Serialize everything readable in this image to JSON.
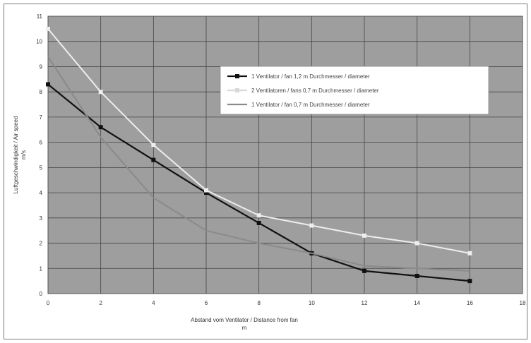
{
  "chart_data": {
    "type": "line",
    "title": "",
    "xlabel": "Abstand vom Ventilator / Distance from fan",
    "xlabel_unit": "m",
    "ylabel": "Luftgeschwindigkeit / Air speed",
    "ylabel_unit": "m/s",
    "xlim": [
      0,
      18
    ],
    "ylim": [
      0,
      11
    ],
    "x_ticks": [
      "0",
      "2",
      "4",
      "6",
      "8",
      "10",
      "12",
      "14",
      "16",
      "18"
    ],
    "y_ticks": [
      "0",
      "1",
      "2",
      "3",
      "4",
      "5",
      "6",
      "7",
      "8",
      "9",
      "10",
      "11"
    ],
    "grid": true,
    "legend_position": "top-right",
    "series": [
      {
        "name": "1 Ventilator / fan   1,2 m Durchmesser / diameter",
        "color": "#111111",
        "marker": "square",
        "x": [
          0,
          2,
          4,
          6,
          8,
          10,
          12,
          14,
          16
        ],
        "y": [
          8.3,
          6.6,
          5.3,
          4.0,
          2.8,
          1.6,
          0.9,
          0.7,
          0.5
        ]
      },
      {
        "name": "2 Ventilatoren / fans  0,7 m Durchmesser / diameter",
        "color": "#eeeeee",
        "marker": "square",
        "x": [
          0,
          2,
          4,
          6,
          8,
          10,
          12,
          14,
          16
        ],
        "y": [
          10.5,
          8.0,
          5.9,
          4.1,
          3.1,
          2.7,
          2.3,
          2.0,
          1.6
        ]
      },
      {
        "name": "1 Ventilator / fan   0,7 m Durchmesser / diameter",
        "color": "#8a8a8a",
        "marker": "none",
        "x": [
          0,
          2,
          4,
          6,
          8,
          10,
          12,
          14,
          16
        ],
        "y": [
          9.4,
          6.2,
          3.8,
          2.5,
          2.0,
          1.6,
          1.1,
          1.0,
          0.9
        ]
      }
    ]
  }
}
